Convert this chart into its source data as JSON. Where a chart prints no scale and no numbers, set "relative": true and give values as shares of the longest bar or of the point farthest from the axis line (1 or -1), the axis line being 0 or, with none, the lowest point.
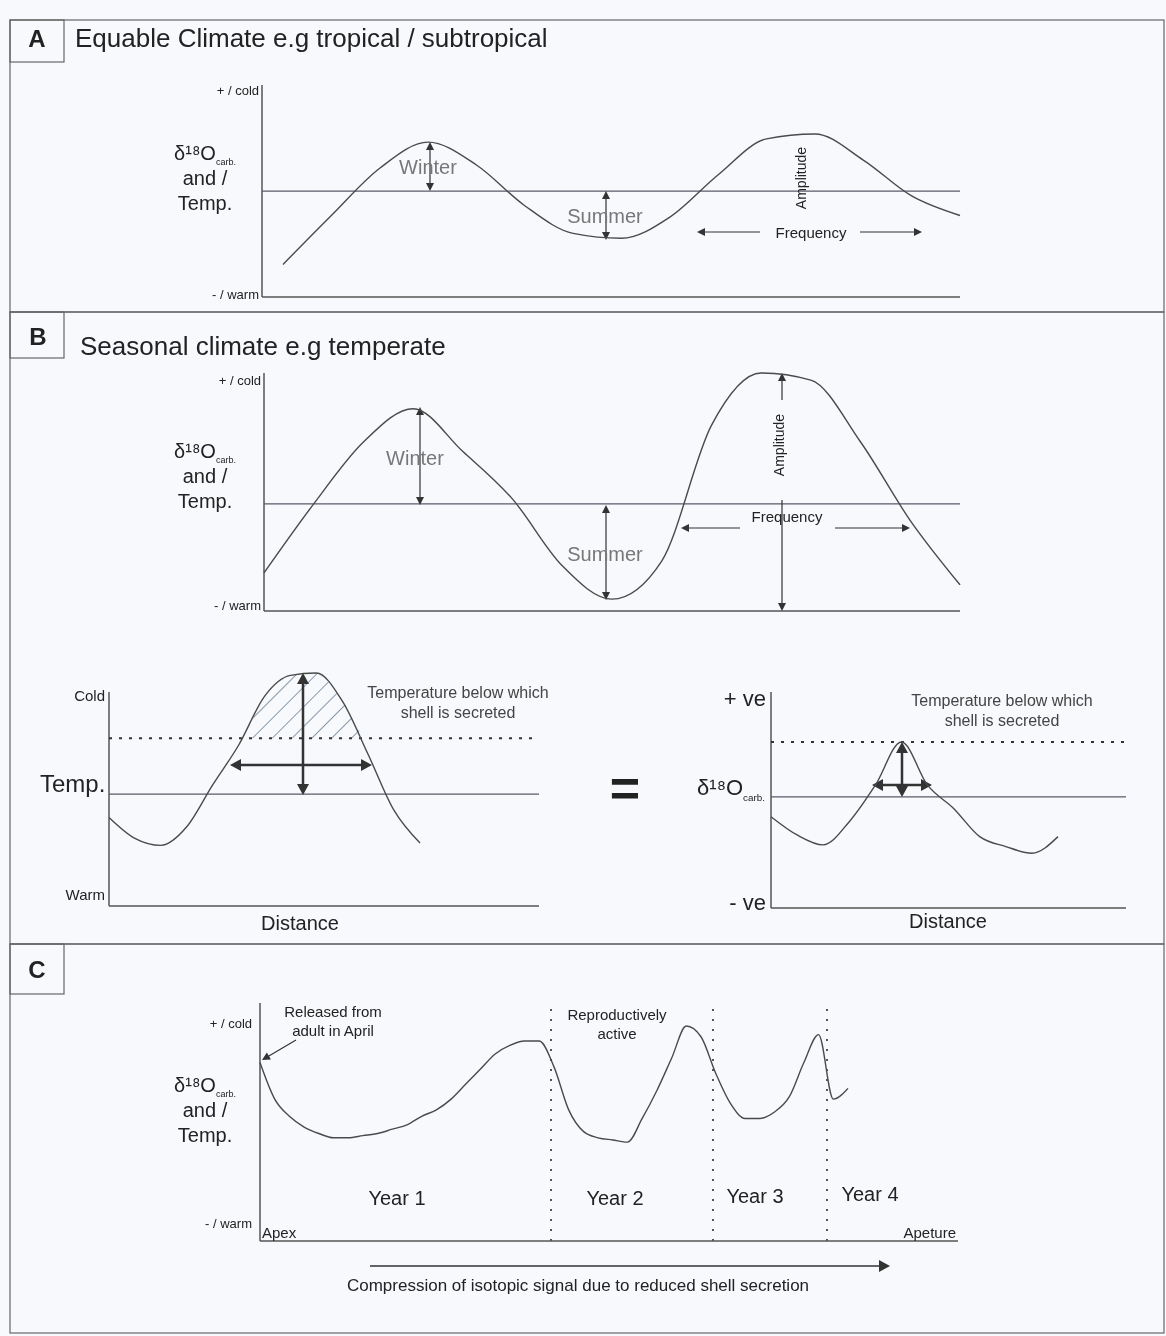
{
  "chart_data": [
    {
      "type": "line",
      "relative": true,
      "title": "Equable Climate e.g tropical / subtropical",
      "ylabel": "δ¹⁸O$_{carb.}$\nand /\nTemp.",
      "categories": [
        null,
        null,
        null,
        null,
        null,
        null,
        null,
        null,
        null,
        null,
        null,
        null,
        null,
        null,
        null
      ],
      "series": [
        {
          "color": "#4a4a4a",
          "values": [
            0.2,
            0.5,
            0.79,
            0.95,
            0.81,
            0.56,
            0.39,
            0.36,
            0.49,
            0.75,
            0.97,
            1.0,
            0.84,
            0.62,
            0.5
          ]
        }
      ],
      "ref_lines": [
        {
          "axis": "y",
          "value": 0.65,
          "color": "#5a5a6a"
        }
      ],
      "annotations": [
        "A",
        "+ / cold",
        "- / warm",
        "Winter",
        "Summer",
        "Amplitude",
        "Frequency"
      ]
    },
    {
      "type": "line",
      "relative": true,
      "title": "Seasonal climate e.g temperate",
      "ylabel": "δ¹⁸O$_{carb.}$\nand /\nTemp.",
      "categories": [
        null,
        null,
        null,
        null,
        null,
        null,
        null,
        null,
        null,
        null,
        null,
        null,
        null,
        null,
        null
      ],
      "series": [
        {
          "color": "#4a4a4a",
          "values": [
            0.16,
            0.45,
            0.71,
            0.85,
            0.67,
            0.47,
            0.19,
            0.05,
            0.21,
            0.78,
            1.0,
            0.97,
            0.71,
            0.38,
            0.11
          ]
        }
      ],
      "ref_lines": [
        {
          "axis": "y",
          "value": 0.45,
          "color": "#5a5a6a"
        }
      ],
      "annotations": [
        "B",
        "+ / cold",
        "- / warm",
        "Winter",
        "Summer",
        "Amplitude",
        "Frequency"
      ]
    },
    {
      "type": "line",
      "relative": true,
      "xlabel": "Distance",
      "ylabel": "Temp.",
      "categories": [
        null,
        null,
        null,
        null,
        null,
        null,
        null,
        null,
        null,
        null,
        null,
        null,
        null
      ],
      "series": [
        {
          "color": "#4a4a4a",
          "values": [
            0.38,
            0.29,
            0.26,
            0.34,
            0.52,
            0.69,
            0.9,
            0.99,
            1.0,
            0.88,
            0.65,
            0.41,
            0.27
          ]
        }
      ],
      "ref_lines": [
        {
          "axis": "y",
          "value": 0.48,
          "color": "#5a5a6a"
        },
        {
          "axis": "y",
          "value": 0.72,
          "label": "Temperature below which\nshell is secreted",
          "color": "#333333",
          "line_style": "dotted"
        }
      ],
      "annotations": [
        "Cold",
        "Warm"
      ]
    },
    {
      "type": "line",
      "relative": true,
      "xlabel": "Distance",
      "ylabel": "δ¹⁸O$_{carb.}$",
      "categories": [
        null,
        null,
        null,
        null,
        null,
        null,
        null,
        null,
        null,
        null,
        null,
        null
      ],
      "series": [
        {
          "color": "#4a4a4a",
          "values": [
            0.55,
            0.44,
            0.38,
            0.52,
            0.74,
            1.0,
            0.74,
            0.6,
            0.43,
            0.37,
            0.33,
            0.43
          ]
        }
      ],
      "ref_lines": [
        {
          "axis": "y",
          "value": 0.67,
          "color": "#5a5a6a"
        },
        {
          "axis": "y",
          "value": 1.0,
          "label": "Temperature below which\nshell is secreted",
          "color": "#333333",
          "line_style": "dotted"
        }
      ],
      "annotations": [
        "+ ve",
        "- ve",
        "="
      ]
    },
    {
      "type": "line",
      "relative": true,
      "ylabel": "δ¹⁸O$_{carb.}$\nand /\nTemp.",
      "categories": [
        null,
        null,
        null,
        null,
        null,
        null,
        null,
        null,
        null,
        null,
        null,
        null,
        null,
        null,
        null,
        null,
        null,
        null,
        null,
        null,
        null,
        null,
        null,
        null,
        null,
        null,
        null,
        null,
        null,
        null,
        null,
        null,
        null,
        null,
        null,
        null,
        null,
        null,
        null,
        null,
        null
      ],
      "series": [
        {
          "color": "#4a4a4a",
          "values": [
            0.83,
            0.66,
            0.58,
            0.53,
            0.5,
            0.48,
            0.48,
            0.49,
            0.5,
            0.52,
            0.54,
            0.58,
            0.61,
            0.66,
            0.73,
            0.8,
            0.87,
            0.91,
            0.93,
            0.93,
            0.81,
            0.61,
            0.51,
            0.48,
            0.47,
            0.46,
            0.57,
            0.7,
            0.85,
            1.0,
            0.95,
            0.78,
            0.64,
            0.57,
            0.57,
            0.6,
            0.67,
            0.83,
            0.96,
            0.66,
            0.71
          ]
        }
      ],
      "annotations": [
        "C",
        "+ / cold",
        "- / warm",
        "Released from\nadult in April",
        "Reproductively\nactive",
        "Year 1",
        "Year 2",
        "Year 3",
        "Year 4",
        "Apex",
        "Apeture",
        "Compression of isotopic signal due to reduced shell secretion"
      ]
    }
  ]
}
